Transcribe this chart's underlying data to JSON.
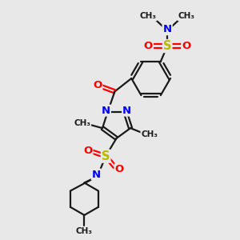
{
  "bg_color": "#e8e8e8",
  "bond_color": "#1a1a1a",
  "N_color": "#0000ff",
  "O_color": "#ff0000",
  "S_color": "#b8b800",
  "line_width": 1.6,
  "font_size": 8.5,
  "fig_width": 3.0,
  "fig_height": 3.0,
  "dpi": 100,
  "xlim": [
    0,
    10
  ],
  "ylim": [
    0,
    10
  ]
}
